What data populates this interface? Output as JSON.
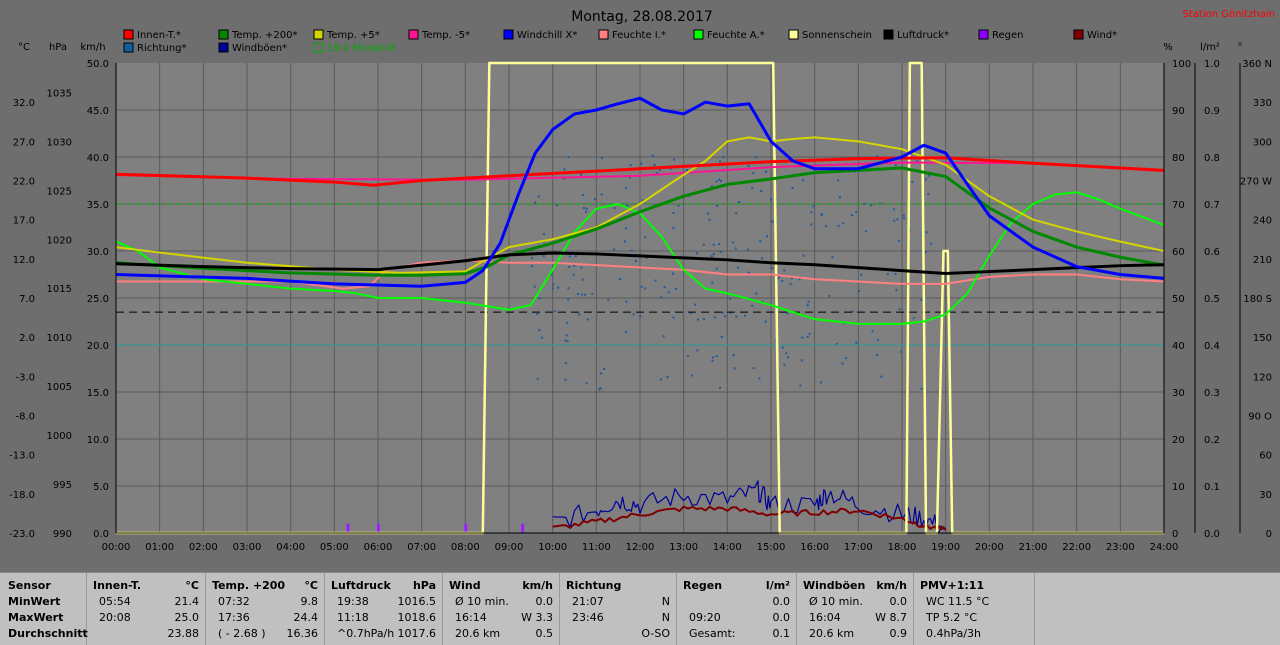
{
  "title": "Montag, 28.08.2017",
  "station": "Station Gönitzhain",
  "unit_labels": {
    "temp": "°C",
    "hpa": "hPa",
    "kmh": "km/h",
    "pct": "%",
    "rain": "l/m²",
    "deg": "°"
  },
  "legend": [
    {
      "label": "Innen-T.*",
      "color": "#ff0000"
    },
    {
      "label": "Temp. +200*",
      "color": "#008800"
    },
    {
      "label": "Temp. +5*",
      "color": "#d4d400"
    },
    {
      "label": "Temp. -5*",
      "color": "#ff1493"
    },
    {
      "label": "Windchill X*",
      "color": "#0000ff"
    },
    {
      "label": "Feuchte I.*",
      "color": "#ff8080"
    },
    {
      "label": "Feuchte A.*",
      "color": "#00ff00"
    },
    {
      "label": "Sonnenschein",
      "color": "#ffff99"
    },
    {
      "label": "Luftdruck*",
      "color": "#000000"
    },
    {
      "label": "Regen",
      "color": "#8800ff"
    },
    {
      "label": "Wind*",
      "color": "#800000"
    },
    {
      "label": "Richtung*",
      "color": "#1060a0"
    },
    {
      "label": "Windböen*",
      "color": "#000099"
    },
    {
      "label": "19.0 Monat-Ø",
      "color": "#00aa00"
    }
  ],
  "chart_data": {
    "type": "line",
    "x_ticks": [
      "00:00",
      "01:00",
      "02:00",
      "03:00",
      "04:00",
      "05:00",
      "06:00",
      "07:00",
      "08:00",
      "09:00",
      "10:00",
      "11:00",
      "12:00",
      "13:00",
      "14:00",
      "15:00",
      "16:00",
      "17:00",
      "18:00",
      "19:00",
      "20:00",
      "21:00",
      "22:00",
      "23:00",
      "24:00"
    ],
    "axes": {
      "temp_c": {
        "ticks": [
          "32.0",
          "27.0",
          "22.0",
          "17.0",
          "12.0",
          "7.0",
          "2.0",
          "-3.0",
          "-8.0",
          "-13.0",
          "-18.0",
          "-23.0"
        ],
        "range": [
          -23,
          37
        ]
      },
      "hpa": {
        "ticks": [
          "1035",
          "1030",
          "1025",
          "1020",
          "1015",
          "1010",
          "1005",
          "1000",
          "995",
          "990"
        ],
        "range": [
          990,
          1038
        ]
      },
      "kmh": {
        "ticks": [
          "50.0",
          "45.0",
          "40.0",
          "35.0",
          "30.0",
          "25.0",
          "20.0",
          "15.0",
          "10.0",
          "5.0",
          "0.0"
        ],
        "range": [
          0,
          50
        ]
      },
      "pct": {
        "ticks": [
          "100",
          "90",
          "80",
          "70",
          "60",
          "50",
          "40",
          "30",
          "20",
          "10",
          "0"
        ],
        "range": [
          0,
          100
        ]
      },
      "rain": {
        "ticks": [
          "1.0",
          "0.9",
          "0.8",
          "0.7",
          "0.6",
          "0.5",
          "0.4",
          "0.3",
          "0.2",
          "0.1",
          "0.0"
        ],
        "range": [
          0,
          1
        ]
      },
      "deg": {
        "ticks": [
          "360 N",
          "330",
          "300",
          "270 W",
          "240",
          "210",
          "180 S",
          "150",
          "120",
          "90 O",
          "60",
          "30",
          "0"
        ],
        "range": [
          0,
          360
        ]
      }
    },
    "xlim": [
      0,
      24
    ],
    "series": [
      {
        "name": "Innen-T.*",
        "color": "#ff0000",
        "axis": "temp",
        "x": [
          0,
          3,
          5,
          5.9,
          7,
          9,
          11,
          13,
          15,
          17,
          19,
          21,
          24
        ],
        "y": [
          22.8,
          22.3,
          21.8,
          21.4,
          22.0,
          22.6,
          23.2,
          23.8,
          24.4,
          24.8,
          24.9,
          24.2,
          23.3
        ]
      },
      {
        "name": "Temp. -5*",
        "color": "#ff1493",
        "axis": "temp",
        "x": [
          0,
          4,
          8,
          12,
          15,
          18,
          21,
          24
        ],
        "y": [
          22.7,
          22.2,
          22.1,
          22.6,
          23.7,
          24.3,
          24.2,
          23.2
        ]
      },
      {
        "name": "Temp. +5*",
        "color": "#d4d400",
        "axis": "temp",
        "x": [
          0,
          1,
          3,
          5,
          6.5,
          8,
          8.5,
          9,
          10,
          11,
          12,
          12.8,
          13.5,
          14,
          14.5,
          15,
          15.5,
          16,
          17,
          18,
          19,
          20,
          21,
          22,
          23,
          24
        ],
        "y": [
          13.5,
          12.8,
          11.5,
          10.6,
          10.2,
          10.4,
          12.0,
          13.5,
          14.5,
          16.0,
          19.0,
          22.0,
          24.5,
          27.0,
          27.5,
          27.0,
          27.3,
          27.5,
          27.0,
          26.0,
          24.0,
          20.0,
          17.0,
          15.5,
          14.2,
          13.0
        ]
      },
      {
        "name": "Temp. +200*",
        "color": "#008800",
        "axis": "temp",
        "x": [
          0,
          2,
          4,
          6,
          7,
          8,
          8.5,
          9,
          10,
          11,
          12,
          13,
          14,
          15,
          16,
          17,
          18,
          19,
          20,
          21,
          22,
          23,
          24
        ],
        "y": [
          11.5,
          10.8,
          10.2,
          9.9,
          9.9,
          10.1,
          11.0,
          12.5,
          14.0,
          15.8,
          18.0,
          20.0,
          21.5,
          22.2,
          23.0,
          23.3,
          23.6,
          22.5,
          18.5,
          15.5,
          13.5,
          12.2,
          11.2
        ]
      },
      {
        "name": "Windchill X*",
        "color": "#0000ff",
        "axis": "temp",
        "x": [
          0,
          3,
          5,
          7,
          8,
          8.4,
          8.8,
          9.2,
          9.6,
          10,
          10.5,
          11,
          11.5,
          12,
          12.5,
          13,
          13.5,
          14,
          14.5,
          15,
          15.5,
          16,
          17,
          18,
          18.5,
          19,
          20,
          21,
          22,
          23,
          24
        ],
        "y": [
          10.0,
          9.5,
          8.8,
          8.5,
          9.0,
          10.5,
          14.0,
          20.0,
          25.5,
          28.5,
          30.5,
          31.0,
          31.8,
          32.5,
          31.0,
          30.5,
          32.0,
          31.5,
          31.8,
          27.0,
          24.5,
          23.5,
          23.5,
          25.0,
          26.5,
          25.5,
          17.5,
          13.5,
          11.0,
          10.0,
          9.5
        ]
      },
      {
        "name": "Feuchte I.*",
        "color": "#ff8080",
        "axis": "pct",
        "x": [
          0,
          2,
          4,
          5.2,
          5.8,
          6.2,
          7,
          8,
          9,
          10,
          11,
          12,
          13,
          14,
          15,
          16,
          17,
          18,
          19,
          20,
          21,
          22,
          23,
          24
        ],
        "y": [
          53.5,
          53.5,
          53.5,
          52.0,
          52.5,
          56,
          57.5,
          58,
          57.5,
          57.5,
          57,
          56.5,
          56,
          55,
          55,
          54,
          53.5,
          53,
          53,
          54.5,
          55,
          55,
          54,
          53.5
        ]
      },
      {
        "name": "Feuchte A.*",
        "color": "#00ff00",
        "axis": "pct",
        "x": [
          0,
          0.5,
          1,
          2,
          3,
          4,
          5,
          5.5,
          6,
          7,
          8,
          9,
          9.5,
          10,
          10.5,
          11,
          11.5,
          12,
          12.5,
          13,
          13.5,
          14,
          15,
          16,
          17,
          18,
          18.5,
          19,
          19.5,
          20,
          20.5,
          21,
          21.5,
          22,
          22.5,
          23,
          24
        ],
        "y": [
          62,
          60,
          56.5,
          54,
          53,
          52,
          51.5,
          51,
          50,
          50,
          49,
          47.5,
          48.5,
          56,
          64,
          69,
          70,
          68,
          63,
          56,
          52,
          51,
          48.5,
          45.5,
          44.5,
          44.5,
          45,
          46.5,
          51,
          59,
          66,
          70,
          72,
          72.5,
          71,
          69,
          65.5
        ]
      },
      {
        "name": "Luftdruck*",
        "color": "#000000",
        "axis": "hpa",
        "x": [
          0,
          2,
          4,
          6,
          8,
          9,
          10,
          11,
          12,
          13,
          14,
          15,
          16,
          17,
          18,
          19,
          20,
          21,
          22,
          23,
          24
        ],
        "y": [
          1017.5,
          1017.2,
          1017.0,
          1016.9,
          1017.8,
          1018.4,
          1018.6,
          1018.5,
          1018.3,
          1018.1,
          1017.9,
          1017.6,
          1017.4,
          1017.1,
          1016.8,
          1016.5,
          1016.7,
          1016.9,
          1017.1,
          1017.3,
          1017.4
        ]
      },
      {
        "name": "Sonnenschein",
        "color": "#ffff99",
        "axis": "pct",
        "x": [
          0,
          8.4,
          8.55,
          15.05,
          15.2,
          18.1,
          18.18,
          18.45,
          18.55,
          18.8,
          18.95,
          19.05,
          19.15,
          24
        ],
        "y": [
          0,
          0,
          100,
          100,
          0,
          0,
          100,
          100,
          0,
          0,
          60,
          60,
          0,
          0
        ]
      }
    ],
    "reference_lines": [
      {
        "label": "19.0 Monat-Ø",
        "axis": "temp",
        "value": 19.0,
        "color": "#00aa00"
      }
    ],
    "wind_mean": {
      "axis": "kmh",
      "x": [
        10,
        11,
        12,
        13,
        14,
        15,
        16,
        17,
        18,
        18.5,
        19
      ],
      "y": [
        0.5,
        1.2,
        2.0,
        2.6,
        2.6,
        2.0,
        2.2,
        2.4,
        1.5,
        0.8,
        0.3
      ]
    },
    "wind_gusts": {
      "axis": "kmh",
      "x": [
        10,
        11,
        11.5,
        12,
        13,
        14,
        14.7,
        15,
        16,
        16.3,
        17,
        18,
        18.5,
        19
      ],
      "y": [
        1.0,
        2.5,
        3.5,
        3.0,
        4.0,
        3.5,
        4.5,
        3.0,
        3.0,
        4.3,
        3.0,
        2.0,
        1.5,
        0.5
      ]
    },
    "rain_marks": {
      "axis": "rain",
      "x": [
        5.3,
        6.0,
        8.0,
        9.3
      ],
      "y": [
        0.02,
        0.02,
        0.02,
        0.02
      ]
    },
    "direction_range": {
      "axis": "deg",
      "from_h": 9.5,
      "to_h": 18.9,
      "min": 110,
      "max": 290
    }
  },
  "summary": {
    "rowlabels": [
      "Sensor",
      "MinWert",
      "MaxWert",
      "Durchschnitt"
    ],
    "columns": [
      {
        "header": "Innen-T.",
        "unit": "°C",
        "rows": [
          [
            "05:54",
            "21.4"
          ],
          [
            "20:08",
            "25.0"
          ],
          [
            "",
            "23.88"
          ]
        ]
      },
      {
        "header": "Temp. +200",
        "unit": "°C",
        "rows": [
          [
            "07:32",
            "9.8"
          ],
          [
            "17:36",
            "24.4"
          ],
          [
            "( - 2.68 )",
            "16.36"
          ]
        ]
      },
      {
        "header": "Luftdruck",
        "unit": "hPa",
        "rows": [
          [
            "19:38",
            "1016.5"
          ],
          [
            "11:18",
            "1018.6"
          ],
          [
            "^0.7hPa/h",
            "1017.6"
          ]
        ]
      },
      {
        "header": "Wind",
        "unit": "km/h",
        "rows": [
          [
            "Ø 10 min.",
            "0.0"
          ],
          [
            "16:14",
            "W 3.3"
          ],
          [
            "20.6 km",
            "0.5"
          ]
        ]
      },
      {
        "header": "Richtung",
        "unit": "",
        "rows": [
          [
            "21:07",
            "N"
          ],
          [
            "23:46",
            "N"
          ],
          [
            "",
            "O-SO"
          ]
        ]
      },
      {
        "header": "Regen",
        "unit": "l/m²",
        "rows": [
          [
            "",
            "0.0"
          ],
          [
            "09:20",
            "0.0"
          ],
          [
            "Gesamt:",
            "0.1"
          ]
        ]
      },
      {
        "header": "Windböen",
        "unit": "km/h",
        "rows": [
          [
            "Ø 10 min.",
            "0.0"
          ],
          [
            "16:04",
            "W 8.7"
          ],
          [
            "20.6 km",
            "0.9"
          ]
        ]
      },
      {
        "header": "PMV+1:11",
        "unit": "",
        "rows": [
          [
            "WC 11.5 °C",
            ""
          ],
          [
            "TP 5.2 °C",
            ""
          ],
          [
            "0.4hPa/3h",
            ""
          ]
        ]
      }
    ]
  }
}
